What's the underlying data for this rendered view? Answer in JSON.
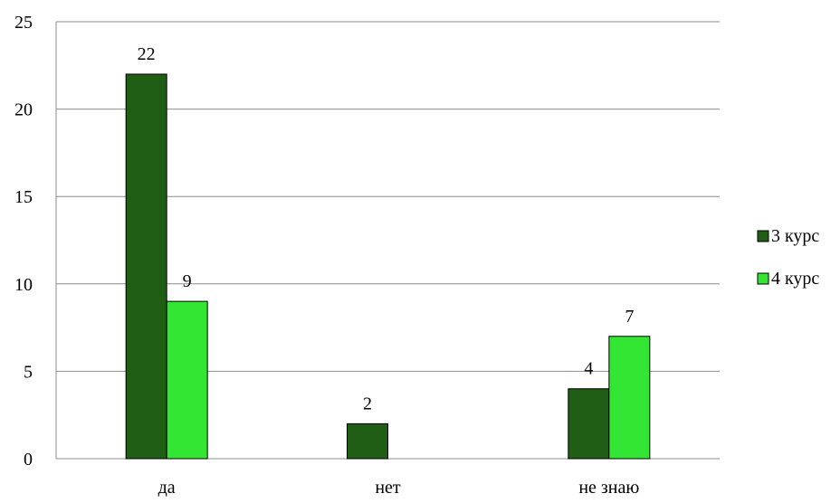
{
  "chart_data": {
    "type": "bar",
    "title": "",
    "xlabel": "",
    "ylabel": "",
    "categories": [
      "да",
      "нет",
      "не знаю"
    ],
    "series": [
      {
        "name": "3 курс",
        "values": [
          22,
          2,
          4
        ],
        "color": "#215e15"
      },
      {
        "name": "4 курс",
        "values": [
          9,
          null,
          7
        ],
        "color": "#33e633"
      }
    ],
    "ylim": [
      0,
      25
    ],
    "yticks": [
      "0",
      "5",
      "10",
      "15",
      "20",
      "25"
    ],
    "grid": true,
    "legend_position": "right",
    "data_labels": true
  }
}
